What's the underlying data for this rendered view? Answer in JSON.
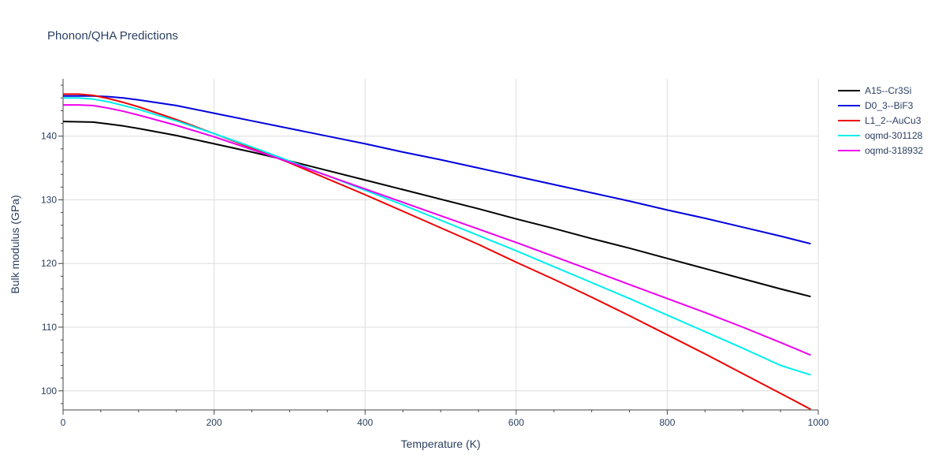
{
  "chart_data": {
    "type": "line",
    "title": "Phonon/QHA Predictions",
    "xlabel": "Temperature (K)",
    "ylabel": "Bulk modulus (GPa)",
    "xlim": [
      0,
      1000
    ],
    "ylim": [
      97,
      149
    ],
    "xticks": [
      0,
      200,
      400,
      600,
      800,
      1000
    ],
    "yticks": [
      100,
      110,
      120,
      130,
      140
    ],
    "grid": true,
    "legend": "top-right",
    "series": [
      {
        "name": "A15--Cr3Si",
        "color": "#000000",
        "x": [
          0,
          20,
          40,
          60,
          80,
          100,
          150,
          200,
          250,
          300,
          350,
          400,
          450,
          500,
          550,
          600,
          650,
          700,
          750,
          800,
          850,
          900,
          950,
          990
        ],
        "y": [
          142.3,
          142.25,
          142.2,
          141.9,
          141.6,
          141.2,
          140.1,
          138.8,
          137.5,
          136.1,
          134.6,
          133.1,
          131.6,
          130.1,
          128.6,
          127.0,
          125.5,
          123.9,
          122.4,
          120.8,
          119.2,
          117.6,
          116.0,
          114.8
        ]
      },
      {
        "name": "D0_3--BiF3",
        "color": "#0000dd",
        "x": [
          0,
          20,
          40,
          60,
          80,
          100,
          150,
          200,
          250,
          300,
          350,
          400,
          450,
          500,
          550,
          600,
          650,
          700,
          750,
          800,
          850,
          900,
          950,
          990
        ],
        "y": [
          146.3,
          146.3,
          146.3,
          146.2,
          146.0,
          145.7,
          144.8,
          143.6,
          142.4,
          141.2,
          140.0,
          138.8,
          137.5,
          136.3,
          135.0,
          133.7,
          132.4,
          131.1,
          129.8,
          128.4,
          127.1,
          125.7,
          124.3,
          123.1
        ]
      },
      {
        "name": "L1_2--AuCu3",
        "color": "#ee0000",
        "x": [
          0,
          20,
          40,
          60,
          80,
          100,
          150,
          200,
          250,
          300,
          350,
          400,
          450,
          500,
          550,
          600,
          650,
          700,
          750,
          800,
          850,
          900,
          950,
          990
        ],
        "y": [
          146.6,
          146.6,
          146.4,
          145.9,
          145.3,
          144.6,
          142.6,
          140.4,
          138.1,
          135.8,
          133.3,
          130.8,
          128.2,
          125.6,
          123.0,
          120.2,
          117.5,
          114.7,
          111.8,
          108.8,
          105.8,
          102.7,
          99.6,
          97.1
        ]
      },
      {
        "name": "oqmd-301128",
        "color": "#00eeee",
        "x": [
          0,
          20,
          40,
          60,
          80,
          100,
          150,
          200,
          250,
          300,
          350,
          400,
          450,
          500,
          550,
          600,
          650,
          700,
          750,
          800,
          850,
          900,
          950,
          990
        ],
        "y": [
          146.0,
          146.0,
          145.8,
          145.4,
          144.8,
          144.2,
          142.4,
          140.4,
          138.3,
          136.1,
          133.8,
          131.5,
          129.2,
          126.8,
          124.4,
          122.0,
          119.5,
          117.0,
          114.5,
          111.9,
          109.3,
          106.7,
          104.0,
          102.5
        ]
      },
      {
        "name": "oqmd-318932",
        "color": "#ee00ee",
        "x": [
          0,
          20,
          40,
          60,
          80,
          100,
          150,
          200,
          250,
          300,
          350,
          400,
          450,
          500,
          550,
          600,
          650,
          700,
          750,
          800,
          850,
          900,
          950,
          990
        ],
        "y": [
          144.9,
          144.9,
          144.8,
          144.4,
          143.9,
          143.3,
          141.7,
          139.9,
          137.9,
          135.9,
          133.8,
          131.7,
          129.6,
          127.5,
          125.4,
          123.3,
          121.1,
          118.9,
          116.7,
          114.5,
          112.3,
          110.0,
          107.6,
          105.6
        ]
      }
    ]
  }
}
